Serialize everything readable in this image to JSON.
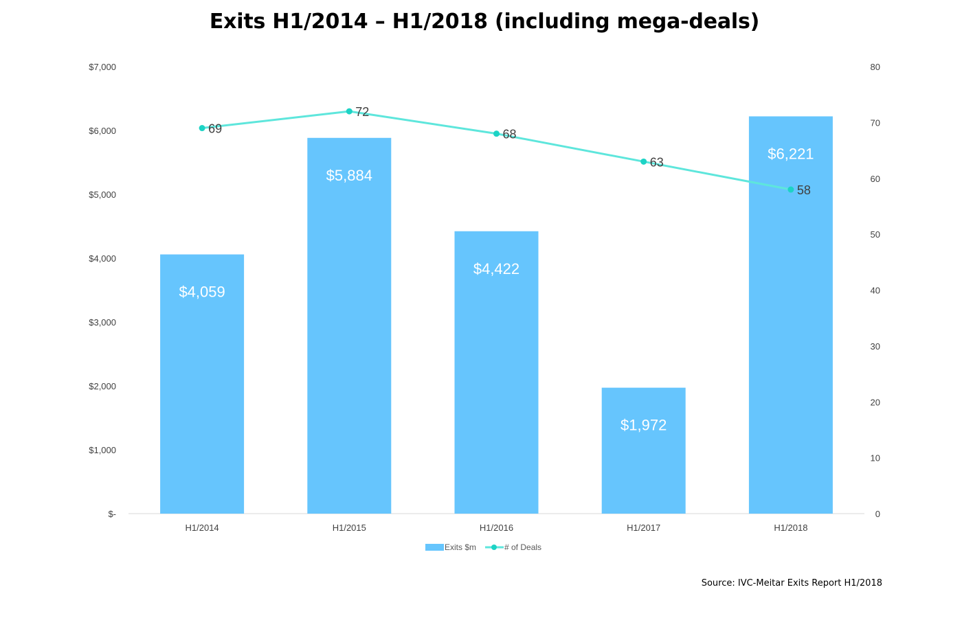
{
  "chart_data": {
    "type": "bar",
    "title": "Exits H1/2014 – H1/2018 (including mega-deals)",
    "categories": [
      "H1/2014",
      "H1/2015",
      "H1/2016",
      "H1/2017",
      "H1/2018"
    ],
    "series": [
      {
        "name": "Exits $m",
        "type": "bar",
        "axis": "left",
        "color": "#66c5fd",
        "values": [
          4059,
          5884,
          4422,
          1972,
          6221
        ],
        "labels": [
          "$4,059",
          "$5,884",
          "$4,422",
          "$1,972",
          "$6,221"
        ]
      },
      {
        "name": "# of Deals",
        "type": "line",
        "axis": "right",
        "color": "#5ee6dc",
        "marker_color": "#1dd3c5",
        "values": [
          69,
          72,
          68,
          63,
          58
        ],
        "labels": [
          "69",
          "72",
          "68",
          "63",
          "58"
        ]
      }
    ],
    "y_left": {
      "min": 0,
      "max": 7000,
      "ticks": [
        0,
        1000,
        2000,
        3000,
        4000,
        5000,
        6000,
        7000
      ],
      "tick_labels": [
        "$-",
        "$1,000",
        "$2,000",
        "$3,000",
        "$4,000",
        "$5,000",
        "$6,000",
        "$7,000"
      ]
    },
    "y_right": {
      "min": 0,
      "max": 80,
      "ticks": [
        0,
        10,
        20,
        30,
        40,
        50,
        60,
        70,
        80
      ],
      "tick_labels": [
        "0",
        "10",
        "20",
        "30",
        "40",
        "50",
        "60",
        "70",
        "80"
      ]
    },
    "grid": false,
    "legend_position": "bottom",
    "legend": [
      {
        "name": "Exits $m",
        "kind": "bar"
      },
      {
        "name": "# of Deals",
        "kind": "line"
      }
    ]
  },
  "source_note": "Source: IVC-Meitar Exits Report H1/2018"
}
